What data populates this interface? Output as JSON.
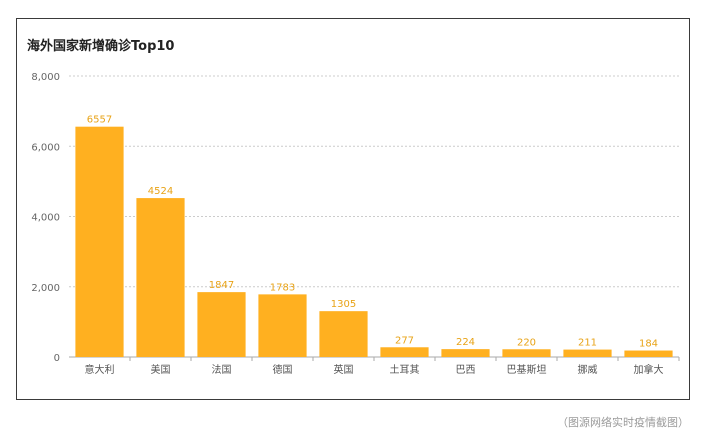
{
  "chart_data": {
    "type": "bar",
    "title": "海外国家新增确诊Top10",
    "categories": [
      "意大利",
      "美国",
      "法国",
      "德国",
      "英国",
      "土耳其",
      "巴西",
      "巴基斯坦",
      "挪威",
      "加拿大"
    ],
    "values": [
      6557,
      4524,
      1847,
      1783,
      1305,
      277,
      224,
      220,
      211,
      184
    ],
    "data_labels": [
      "6557",
      "4524",
      "1847",
      "1783",
      "1305",
      "277",
      "224",
      "220",
      "211",
      "184"
    ],
    "yticks": [
      "0",
      "2,000",
      "4,000",
      "6,000",
      "8,000"
    ],
    "ytick_values": [
      0,
      2000,
      4000,
      6000,
      8000
    ],
    "ylim": [
      0,
      8000
    ],
    "xlabel": "",
    "ylabel": "",
    "grid": true,
    "legend": "none",
    "colors": {
      "bar": "#FFB020",
      "label": "#E8A317",
      "grid": "#cccccc",
      "axis": "#aaaaaa"
    }
  },
  "footer": {
    "caption": "（图源网络实时疫情截图）"
  }
}
